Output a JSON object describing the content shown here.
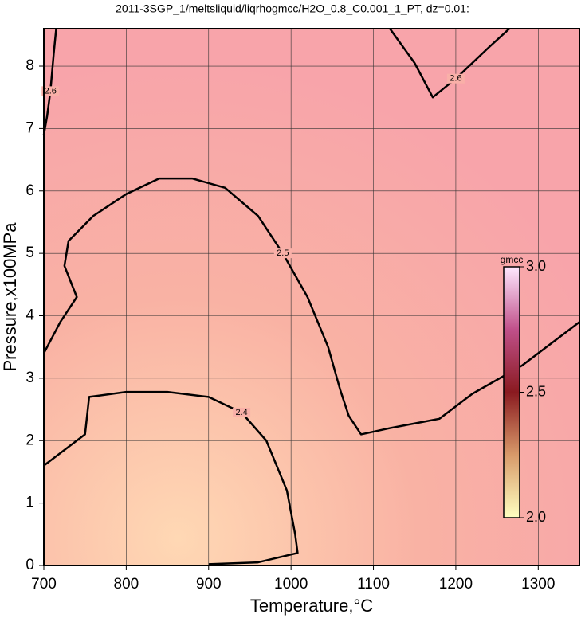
{
  "chart_data": {
    "type": "contour",
    "title": "2011-3SGP_1/meltsliquid/liqrhogmcc/H2O_0.8_C0.001_1_PT, dz=0.01:",
    "xlabel": "Temperature,°C",
    "ylabel": "Pressure,x100MPa",
    "xlim": [
      700,
      1350
    ],
    "ylim": [
      0,
      8.6
    ],
    "xticks": [
      700,
      800,
      900,
      1000,
      1100,
      1200,
      1300
    ],
    "yticks": [
      0,
      1,
      2,
      3,
      4,
      5,
      6,
      7,
      8
    ],
    "grid": true,
    "line_color": "#000000",
    "contours": [
      {
        "level": 2.5,
        "x": [
          700,
          720,
          740,
          725,
          730,
          760,
          800,
          840,
          880,
          920,
          960,
          990,
          1020,
          1045,
          1060,
          1070,
          1085,
          1120,
          1160,
          1180,
          1220,
          1280,
          1350
        ],
        "y": [
          3.4,
          3.9,
          4.3,
          4.8,
          5.2,
          5.6,
          5.95,
          6.2,
          6.2,
          6.05,
          5.6,
          5.0,
          4.3,
          3.5,
          2.8,
          2.4,
          2.1,
          2.2,
          2.3,
          2.35,
          2.75,
          3.2,
          3.9
        ]
      },
      {
        "level": 2.4,
        "x": [
          700,
          725,
          750,
          755,
          800,
          850,
          900,
          940,
          970,
          995,
          1005,
          1008,
          960,
          900
        ],
        "y": [
          1.6,
          1.85,
          2.1,
          2.7,
          2.78,
          2.78,
          2.7,
          2.45,
          2.0,
          1.2,
          0.5,
          0.2,
          0.05,
          0.02
        ]
      },
      {
        "level": 2.6,
        "x": [
          1120,
          1150,
          1172,
          1200,
          1240,
          1265
        ],
        "y": [
          8.6,
          8.05,
          7.5,
          7.8,
          8.3,
          8.6
        ]
      },
      {
        "level": 2.6,
        "x": [
          715,
          712,
          708,
          704,
          700
        ],
        "y": [
          8.6,
          8.2,
          7.6,
          7.2,
          6.9
        ]
      }
    ],
    "colorbar": {
      "label": "gmcc",
      "lim": [
        2.0,
        3.0
      ],
      "ticks": [
        {
          "value": 2.0,
          "label": "2.0"
        },
        {
          "value": 2.5,
          "label": "2.5"
        },
        {
          "value": 3.0,
          "label": "3.0"
        }
      ],
      "colors": [
        "#ffffc0",
        "#d89a6a",
        "#8a1a20",
        "#c0508a",
        "#ffe8ff"
      ]
    }
  }
}
